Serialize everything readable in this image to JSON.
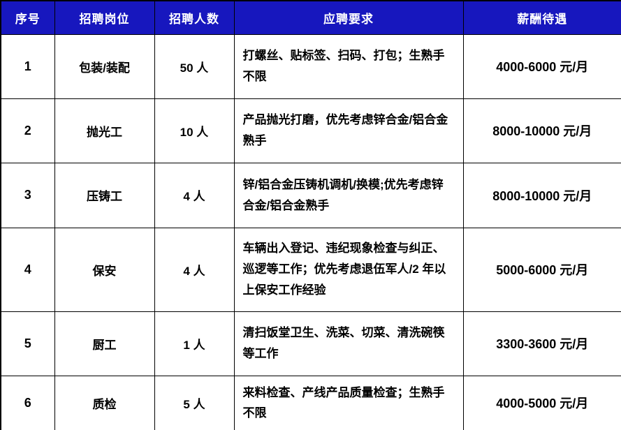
{
  "colors": {
    "header_bg": "#1717be",
    "header_text": "#ffffff",
    "border": "#000000",
    "body_text": "#000000",
    "page_bg": "#ffffff"
  },
  "table": {
    "headers": [
      {
        "label": "序号"
      },
      {
        "label": "招聘岗位"
      },
      {
        "label": "招聘人数"
      },
      {
        "label": "应聘要求"
      },
      {
        "label": "薪酬待遇"
      }
    ],
    "rows": [
      {
        "no": "1",
        "position": "包装/装配",
        "count": "50 人",
        "requirements": "打螺丝、贴标签、扫码、打包；生熟手不限",
        "salary": "4000-6000 元/月"
      },
      {
        "no": "2",
        "position": "抛光工",
        "count": "10 人",
        "requirements": "产品抛光打磨，优先考虑锌合金/铝合金熟手",
        "salary": "8000-10000 元/月"
      },
      {
        "no": "3",
        "position": "压铸工",
        "count": "4 人",
        "requirements": "锌/铝合金压铸机调机/换模;优先考虑锌合金/铝合金熟手",
        "salary": "8000-10000 元/月"
      },
      {
        "no": "4",
        "position": "保安",
        "count": "4 人",
        "requirements": "车辆出入登记、违纪现象检查与纠正、巡逻等工作；优先考虑退伍军人/2 年以上保安工作经验",
        "salary": "5000-6000 元/月"
      },
      {
        "no": "5",
        "position": "厨工",
        "count": "1 人",
        "requirements": "清扫饭堂卫生、洗菜、切菜、清洗碗筷等工作",
        "salary": "3300-3600 元/月"
      },
      {
        "no": "6",
        "position": "质检",
        "count": "5 人",
        "requirements": "来料检查、产线产品质量检查；生熟手不限",
        "salary": "4000-5000 元/月"
      }
    ]
  }
}
